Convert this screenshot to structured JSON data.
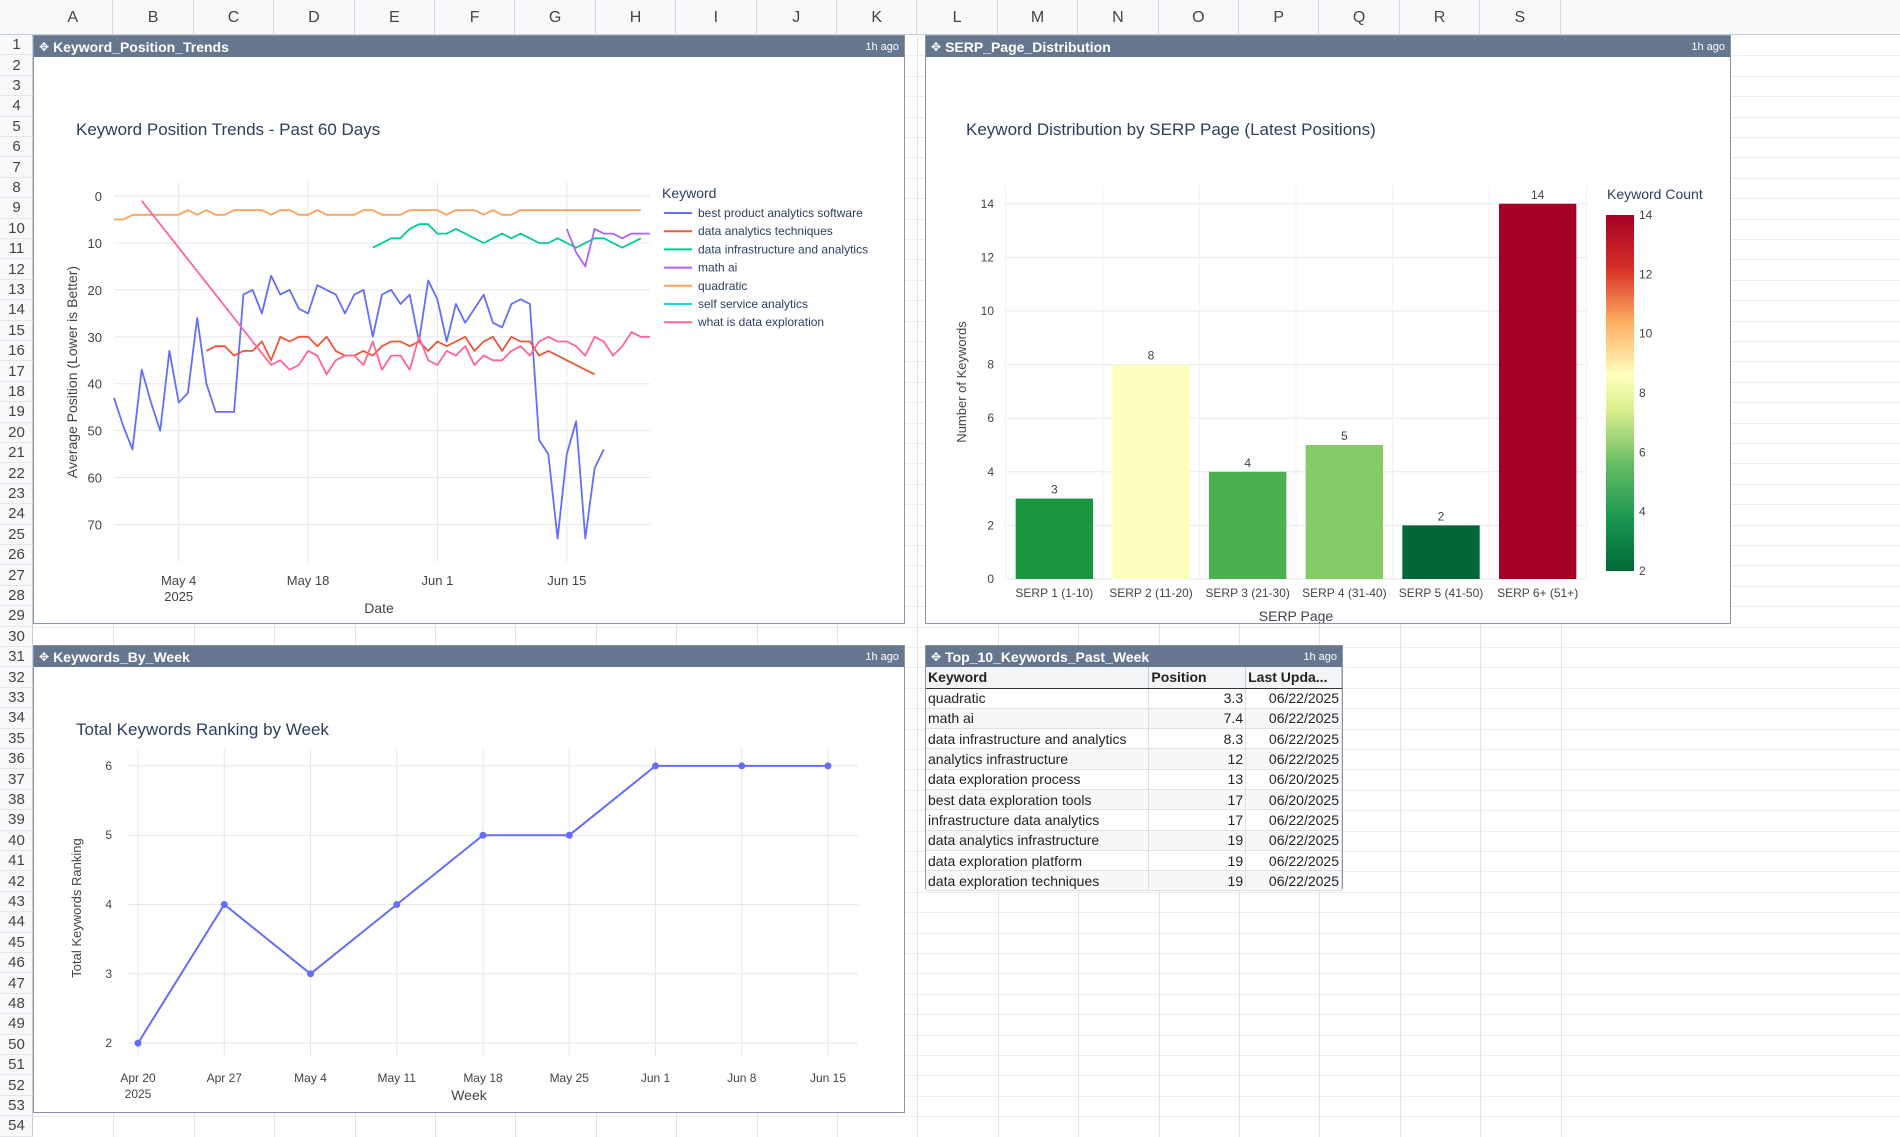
{
  "sheet": {
    "columns": [
      "A",
      "B",
      "C",
      "D",
      "E",
      "F",
      "G",
      "H",
      "I",
      "J",
      "K",
      "L",
      "M",
      "N",
      "O",
      "P",
      "Q",
      "R",
      "S"
    ],
    "rows": [
      "1",
      "2",
      "3",
      "4",
      "5",
      "6",
      "7",
      "8",
      "9",
      "10",
      "11",
      "12",
      "13",
      "14",
      "15",
      "16",
      "17",
      "18",
      "19",
      "20",
      "21",
      "22",
      "23",
      "24",
      "25",
      "26",
      "27",
      "28",
      "29",
      "30",
      "31",
      "32",
      "33",
      "34",
      "35",
      "36",
      "37",
      "38",
      "39",
      "40",
      "41",
      "42",
      "43",
      "44",
      "45",
      "46",
      "47",
      "48",
      "49",
      "50",
      "51",
      "52",
      "53",
      "54"
    ]
  },
  "panels": {
    "trends": {
      "name": "Keyword_Position_Trends",
      "updated": "1h ago"
    },
    "serp": {
      "name": "SERP_Page_Distribution",
      "updated": "1h ago"
    },
    "weekly": {
      "name": "Keywords_By_Week",
      "updated": "1h ago"
    },
    "top10": {
      "name": "Top_10_Keywords_Past_Week",
      "updated": "1h ago"
    }
  },
  "chart_data": [
    {
      "id": "trends",
      "type": "line",
      "title": "Keyword Position Trends - Past 60 Days",
      "xlabel": "Date",
      "ylabel": "Average Position (Lower is Better)",
      "y_reversed": true,
      "ylim": [
        -3,
        78
      ],
      "yticks": [
        0,
        10,
        20,
        30,
        40,
        50,
        60,
        70
      ],
      "xlim": [
        "2025-04-27",
        "2025-06-24"
      ],
      "xticks": [
        {
          "date": "2025-05-04",
          "label": "May 4",
          "sub": "2025"
        },
        {
          "date": "2025-05-18",
          "label": "May 18",
          "sub": ""
        },
        {
          "date": "2025-06-01",
          "label": "Jun 1",
          "sub": ""
        },
        {
          "date": "2025-06-15",
          "label": "Jun 15",
          "sub": ""
        }
      ],
      "legend_title": "Keyword",
      "legend_position": "right",
      "series": [
        {
          "name": "best product analytics software",
          "color": "#636efa",
          "start": "2025-04-27",
          "values": [
            43,
            49,
            54,
            37,
            44,
            50,
            33,
            44,
            42,
            26,
            40,
            46,
            46,
            46,
            21,
            20,
            25,
            17,
            21,
            20,
            24,
            25,
            19,
            20,
            21,
            25,
            21,
            20,
            30,
            21,
            20,
            23,
            21,
            31,
            18,
            22,
            31,
            23,
            27,
            24,
            21,
            27,
            28,
            23,
            22,
            23,
            52,
            55,
            73,
            55,
            48,
            73,
            58,
            54
          ]
        },
        {
          "name": "data analytics techniques",
          "color": "#ef553b",
          "start": "2025-05-07",
          "values": [
            33,
            32,
            32,
            34,
            33,
            33,
            31,
            35,
            30,
            31,
            30,
            30,
            32,
            30,
            33,
            34,
            34,
            33,
            34,
            32,
            31,
            31,
            32,
            31,
            33,
            31,
            32,
            31,
            30,
            33,
            31,
            30,
            33,
            30,
            31,
            31,
            34,
            33,
            34,
            35,
            36,
            37,
            38
          ]
        },
        {
          "name": "data infrastructure and analytics",
          "color": "#00cc96",
          "start": "2025-05-25",
          "values": [
            11,
            10,
            9,
            9,
            7,
            6,
            6,
            8,
            8,
            7,
            8,
            9,
            10,
            9,
            8,
            9,
            8,
            9,
            10,
            10,
            9,
            10,
            11,
            10,
            9,
            9,
            10,
            11,
            10,
            9
          ]
        },
        {
          "name": "math ai",
          "color": "#ab63fa",
          "start": "2025-06-15",
          "values": [
            7,
            12,
            15,
            7,
            8,
            8,
            9,
            8,
            8,
            8
          ]
        },
        {
          "name": "quadratic",
          "color": "#ffa15a",
          "start": "2025-04-27",
          "values": [
            5,
            5,
            4,
            4,
            4,
            4,
            4,
            4,
            3,
            4,
            3,
            4,
            4,
            3,
            3,
            3,
            3,
            4,
            3,
            3,
            4,
            4,
            3,
            4,
            4,
            4,
            4,
            3,
            3,
            4,
            4,
            4,
            3,
            3,
            3,
            3,
            4,
            3,
            3,
            3,
            4,
            3,
            4,
            4,
            3,
            3,
            3,
            3,
            3,
            3,
            3,
            3,
            3,
            3,
            3,
            3,
            3,
            3
          ]
        },
        {
          "name": "self service analytics",
          "color": "#19d3f3",
          "start": "2025-04-27",
          "values": []
        },
        {
          "name": "what is data exploration",
          "color": "#ff6692",
          "start": "2025-04-30",
          "values": [
            1,
            null,
            null,
            null,
            null,
            null,
            null,
            null,
            null,
            null,
            null,
            null,
            null,
            null,
            36,
            35,
            37,
            36,
            33,
            34,
            38,
            35,
            34,
            34,
            36,
            31,
            37,
            34,
            34,
            37,
            30,
            35,
            36,
            33,
            34,
            32,
            36,
            34,
            35,
            35,
            33,
            32,
            34,
            31,
            30,
            31,
            31,
            32,
            34,
            30,
            31,
            34,
            32,
            29,
            30,
            30
          ]
        }
      ]
    },
    {
      "id": "serp",
      "type": "bar",
      "title": "Keyword Distribution by SERP Page (Latest Positions)",
      "xlabel": "SERP Page",
      "ylabel": "Number of Keywords",
      "ylim": [
        0,
        14.7
      ],
      "yticks": [
        0,
        2,
        4,
        6,
        8,
        10,
        12,
        14
      ],
      "categories": [
        "SERP 1 (1-10)",
        "SERP 2 (11-20)",
        "SERP 3 (21-30)",
        "SERP 4 (31-40)",
        "SERP 5 (41-50)",
        "SERP 6+ (51+)"
      ],
      "values": [
        3,
        8,
        4,
        5,
        2,
        14
      ],
      "colors": [
        "#1a9641",
        "#ffffbf",
        "#4caf50",
        "#86cb66",
        "#006837",
        "#a50026"
      ],
      "colorbar": {
        "title": "Keyword Count",
        "min": 2,
        "max": 14,
        "ticks": [
          2,
          4,
          6,
          8,
          10,
          12,
          14
        ]
      }
    },
    {
      "id": "weekly",
      "type": "line",
      "title": "Total Keywords Ranking by Week",
      "xlabel": "Week",
      "ylabel": "Total Keywords Ranking",
      "ylim": [
        1.8,
        6.1
      ],
      "yticks": [
        2,
        3,
        4,
        5,
        6
      ],
      "categories": [
        "Apr 20",
        "Apr 27",
        "May 4",
        "May 11",
        "May 18",
        "May 25",
        "Jun 1",
        "Jun 8",
        "Jun 15"
      ],
      "first_tick_sub": "2025",
      "values": [
        2,
        4,
        3,
        4,
        5,
        5,
        6,
        6,
        6
      ],
      "color": "#636efa"
    }
  ],
  "top10": {
    "headers": [
      "Keyword",
      "Position",
      "Last Upda..."
    ],
    "rows": [
      [
        "quadratic",
        "3.3",
        "06/22/2025"
      ],
      [
        "math ai",
        "7.4",
        "06/22/2025"
      ],
      [
        "data infrastructure and analytics",
        "8.3",
        "06/22/2025"
      ],
      [
        "analytics infrastructure",
        "12",
        "06/22/2025"
      ],
      [
        "data exploration process",
        "13",
        "06/20/2025"
      ],
      [
        "best data exploration tools",
        "17",
        "06/20/2025"
      ],
      [
        "infrastructure data analytics",
        "17",
        "06/22/2025"
      ],
      [
        "data analytics infrastructure",
        "19",
        "06/22/2025"
      ],
      [
        "data exploration platform",
        "19",
        "06/22/2025"
      ],
      [
        "data exploration techniques",
        "19",
        "06/22/2025"
      ]
    ]
  }
}
